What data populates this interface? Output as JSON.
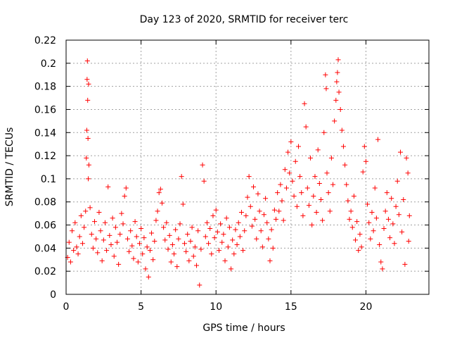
{
  "chart_data": {
    "type": "scatter",
    "title": "Day 123 of 2020, SRMTID for receiver terc",
    "xlabel": "GPS time / hours",
    "ylabel": "SRMTID / TECUs",
    "xlim": [
      0,
      24.2
    ],
    "ylim": [
      0,
      0.22
    ],
    "xticks": [
      0,
      5,
      10,
      15,
      20
    ],
    "xtick_labels": [
      "0",
      "5",
      "10",
      "15",
      "20"
    ],
    "yticks": [
      0,
      0.02,
      0.04,
      0.06,
      0.08,
      0.1,
      0.12,
      0.14,
      0.16,
      0.18,
      0.2,
      0.22
    ],
    "ytick_labels": [
      "0",
      "0.02",
      "0.04",
      "0.06",
      "0.08",
      "0.1",
      "0.12",
      "0.14",
      "0.16",
      "0.18",
      "0.2",
      "0.22"
    ],
    "grid": true,
    "marker": "+",
    "color": "#ff0000",
    "series": [
      {
        "name": "SRMTID",
        "points": [
          [
            0.1,
            0.032
          ],
          [
            0.2,
            0.045
          ],
          [
            0.3,
            0.028
          ],
          [
            0.4,
            0.055
          ],
          [
            0.5,
            0.038
          ],
          [
            0.6,
            0.062
          ],
          [
            0.7,
            0.041
          ],
          [
            0.8,
            0.035
          ],
          [
            0.9,
            0.05
          ],
          [
            1.0,
            0.068
          ],
          [
            1.1,
            0.044
          ],
          [
            1.2,
            0.058
          ],
          [
            1.3,
            0.072
          ],
          [
            1.35,
            0.118
          ],
          [
            1.38,
            0.142
          ],
          [
            1.4,
            0.186
          ],
          [
            1.42,
            0.202
          ],
          [
            1.44,
            0.168
          ],
          [
            1.46,
            0.135
          ],
          [
            1.48,
            0.1
          ],
          [
            1.5,
            0.182
          ],
          [
            1.52,
            0.112
          ],
          [
            1.6,
            0.075
          ],
          [
            1.7,
            0.052
          ],
          [
            1.8,
            0.04
          ],
          [
            1.9,
            0.063
          ],
          [
            2.0,
            0.048
          ],
          [
            2.1,
            0.036
          ],
          [
            2.2,
            0.071
          ],
          [
            2.3,
            0.055
          ],
          [
            2.4,
            0.029
          ],
          [
            2.5,
            0.047
          ],
          [
            2.6,
            0.062
          ],
          [
            2.7,
            0.038
          ],
          [
            2.8,
            0.093
          ],
          [
            2.9,
            0.051
          ],
          [
            3.0,
            0.043
          ],
          [
            3.1,
            0.066
          ],
          [
            3.2,
            0.033
          ],
          [
            3.3,
            0.058
          ],
          [
            3.4,
            0.045
          ],
          [
            3.5,
            0.026
          ],
          [
            3.6,
            0.052
          ],
          [
            3.7,
            0.07
          ],
          [
            3.8,
            0.061
          ],
          [
            3.9,
            0.085
          ],
          [
            4.0,
            0.092
          ],
          [
            4.1,
            0.048
          ],
          [
            4.2,
            0.037
          ],
          [
            4.3,
            0.055
          ],
          [
            4.4,
            0.042
          ],
          [
            4.5,
            0.031
          ],
          [
            4.6,
            0.063
          ],
          [
            4.7,
            0.05
          ],
          [
            4.8,
            0.028
          ],
          [
            4.9,
            0.044
          ],
          [
            5.0,
            0.057
          ],
          [
            5.1,
            0.035
          ],
          [
            5.2,
            0.049
          ],
          [
            5.3,
            0.022
          ],
          [
            5.4,
            0.041
          ],
          [
            5.5,
            0.015
          ],
          [
            5.6,
            0.038
          ],
          [
            5.7,
            0.053
          ],
          [
            5.8,
            0.03
          ],
          [
            5.9,
            0.046
          ],
          [
            6.0,
            0.064
          ],
          [
            6.1,
            0.072
          ],
          [
            6.2,
            0.088
          ],
          [
            6.3,
            0.091
          ],
          [
            6.4,
            0.079
          ],
          [
            6.5,
            0.058
          ],
          [
            6.6,
            0.047
          ],
          [
            6.7,
            0.062
          ],
          [
            6.8,
            0.039
          ],
          [
            6.9,
            0.051
          ],
          [
            7.0,
            0.028
          ],
          [
            7.1,
            0.043
          ],
          [
            7.2,
            0.035
          ],
          [
            7.3,
            0.056
          ],
          [
            7.4,
            0.024
          ],
          [
            7.5,
            0.048
          ],
          [
            7.6,
            0.061
          ],
          [
            7.7,
            0.102
          ],
          [
            7.8,
            0.078
          ],
          [
            7.9,
            0.044
          ],
          [
            8.0,
            0.037
          ],
          [
            8.1,
            0.052
          ],
          [
            8.2,
            0.029
          ],
          [
            8.3,
            0.046
          ],
          [
            8.4,
            0.058
          ],
          [
            8.5,
            0.033
          ],
          [
            8.6,
            0.041
          ],
          [
            8.7,
            0.025
          ],
          [
            8.8,
            0.055
          ],
          [
            8.9,
            0.008
          ],
          [
            9.0,
            0.039
          ],
          [
            9.1,
            0.112
          ],
          [
            9.2,
            0.098
          ],
          [
            9.3,
            0.05
          ],
          [
            9.4,
            0.062
          ],
          [
            9.5,
            0.044
          ],
          [
            9.6,
            0.057
          ],
          [
            9.7,
            0.035
          ],
          [
            9.8,
            0.068
          ],
          [
            9.9,
            0.049
          ],
          [
            10.0,
            0.073
          ],
          [
            10.1,
            0.054
          ],
          [
            10.2,
            0.038
          ],
          [
            10.3,
            0.061
          ],
          [
            10.4,
            0.045
          ],
          [
            10.5,
            0.052
          ],
          [
            10.6,
            0.029
          ],
          [
            10.7,
            0.066
          ],
          [
            10.8,
            0.041
          ],
          [
            10.9,
            0.058
          ],
          [
            11.0,
            0.022
          ],
          [
            11.1,
            0.047
          ],
          [
            11.2,
            0.035
          ],
          [
            11.3,
            0.056
          ],
          [
            11.4,
            0.043
          ],
          [
            11.5,
            0.062
          ],
          [
            11.6,
            0.05
          ],
          [
            11.7,
            0.071
          ],
          [
            11.8,
            0.038
          ],
          [
            11.9,
            0.055
          ],
          [
            12.0,
            0.068
          ],
          [
            12.1,
            0.084
          ],
          [
            12.2,
            0.102
          ],
          [
            12.3,
            0.076
          ],
          [
            12.4,
            0.059
          ],
          [
            12.5,
            0.093
          ],
          [
            12.6,
            0.065
          ],
          [
            12.7,
            0.048
          ],
          [
            12.8,
            0.087
          ],
          [
            12.9,
            0.072
          ],
          [
            13.0,
            0.055
          ],
          [
            13.1,
            0.041
          ],
          [
            13.2,
            0.069
          ],
          [
            13.3,
            0.083
          ],
          [
            13.4,
            0.062
          ],
          [
            13.5,
            0.048
          ],
          [
            13.6,
            0.029
          ],
          [
            13.7,
            0.056
          ],
          [
            13.8,
            0.04
          ],
          [
            13.9,
            0.073
          ],
          [
            14.0,
            0.065
          ],
          [
            14.1,
            0.088
          ],
          [
            14.2,
            0.072
          ],
          [
            14.3,
            0.095
          ],
          [
            14.4,
            0.081
          ],
          [
            14.5,
            0.064
          ],
          [
            14.6,
            0.108
          ],
          [
            14.7,
            0.092
          ],
          [
            14.8,
            0.123
          ],
          [
            14.9,
            0.105
          ],
          [
            15.0,
            0.132
          ],
          [
            15.1,
            0.098
          ],
          [
            15.2,
            0.085
          ],
          [
            15.3,
            0.115
          ],
          [
            15.4,
            0.076
          ],
          [
            15.5,
            0.128
          ],
          [
            15.6,
            0.102
          ],
          [
            15.7,
            0.088
          ],
          [
            15.8,
            0.068
          ],
          [
            15.9,
            0.165
          ],
          [
            16.0,
            0.145
          ],
          [
            16.1,
            0.092
          ],
          [
            16.2,
            0.077
          ],
          [
            16.3,
            0.118
          ],
          [
            16.4,
            0.06
          ],
          [
            16.5,
            0.085
          ],
          [
            16.6,
            0.102
          ],
          [
            16.7,
            0.071
          ],
          [
            16.8,
            0.125
          ],
          [
            16.9,
            0.096
          ],
          [
            17.0,
            0.082
          ],
          [
            17.1,
            0.064
          ],
          [
            17.2,
            0.14
          ],
          [
            17.3,
            0.19
          ],
          [
            17.35,
            0.178
          ],
          [
            17.4,
            0.105
          ],
          [
            17.5,
            0.088
          ],
          [
            17.6,
            0.072
          ],
          [
            17.7,
            0.118
          ],
          [
            17.8,
            0.095
          ],
          [
            17.9,
            0.15
          ],
          [
            18.0,
            0.168
          ],
          [
            18.05,
            0.184
          ],
          [
            18.1,
            0.192
          ],
          [
            18.15,
            0.203
          ],
          [
            18.2,
            0.175
          ],
          [
            18.3,
            0.16
          ],
          [
            18.4,
            0.142
          ],
          [
            18.5,
            0.128
          ],
          [
            18.6,
            0.112
          ],
          [
            18.7,
            0.095
          ],
          [
            18.8,
            0.081
          ],
          [
            18.9,
            0.065
          ],
          [
            19.0,
            0.072
          ],
          [
            19.1,
            0.058
          ],
          [
            19.2,
            0.085
          ],
          [
            19.3,
            0.047
          ],
          [
            19.4,
            0.063
          ],
          [
            19.5,
            0.038
          ],
          [
            19.6,
            0.052
          ],
          [
            19.7,
            0.041
          ],
          [
            19.8,
            0.106
          ],
          [
            19.9,
            0.128
          ],
          [
            20.0,
            0.115
          ],
          [
            20.1,
            0.078
          ],
          [
            20.2,
            0.062
          ],
          [
            20.3,
            0.048
          ],
          [
            20.4,
            0.071
          ],
          [
            20.5,
            0.055
          ],
          [
            20.6,
            0.092
          ],
          [
            20.7,
            0.066
          ],
          [
            20.8,
            0.134
          ],
          [
            20.9,
            0.043
          ],
          [
            21.0,
            0.028
          ],
          [
            21.1,
            0.022
          ],
          [
            21.2,
            0.057
          ],
          [
            21.3,
            0.072
          ],
          [
            21.4,
            0.088
          ],
          [
            21.5,
            0.065
          ],
          [
            21.6,
            0.049
          ],
          [
            21.7,
            0.083
          ],
          [
            21.8,
            0.061
          ],
          [
            21.9,
            0.044
          ],
          [
            22.0,
            0.076
          ],
          [
            22.1,
            0.098
          ],
          [
            22.2,
            0.069
          ],
          [
            22.3,
            0.123
          ],
          [
            22.4,
            0.054
          ],
          [
            22.5,
            0.082
          ],
          [
            22.6,
            0.026
          ],
          [
            22.7,
            0.118
          ],
          [
            22.8,
            0.105
          ],
          [
            22.85,
            0.046
          ],
          [
            22.9,
            0.068
          ]
        ]
      }
    ]
  }
}
